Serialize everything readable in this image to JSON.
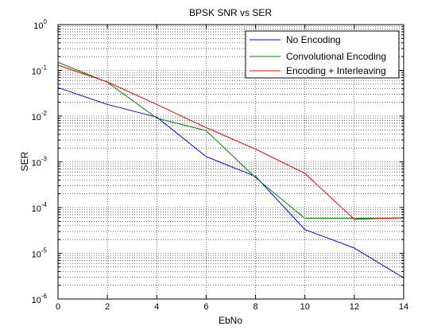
{
  "window": {
    "background": "#ffffff"
  },
  "chart_data": {
    "type": "line",
    "title": "BPSK SNR vs SER",
    "xlabel": "EbNo",
    "ylabel": "SER",
    "xlim": [
      0,
      14
    ],
    "ylim": [
      1e-06,
      1
    ],
    "yscale": "log",
    "grid": true,
    "grid_style": "dotted",
    "minor_grid": true,
    "legend_position": "top-right",
    "x_ticks": [
      {
        "value": 0,
        "label": "0"
      },
      {
        "value": 2,
        "label": "2"
      },
      {
        "value": 4,
        "label": "4"
      },
      {
        "value": 6,
        "label": "6"
      },
      {
        "value": 8,
        "label": "8"
      },
      {
        "value": 10,
        "label": "10"
      },
      {
        "value": 12,
        "label": "12"
      },
      {
        "value": 14,
        "label": "14"
      }
    ],
    "y_ticks": [
      {
        "value": 1e-06,
        "base": "10",
        "exp": "-6"
      },
      {
        "value": 1e-05,
        "base": "10",
        "exp": "-5"
      },
      {
        "value": 0.0001,
        "base": "10",
        "exp": "-4"
      },
      {
        "value": 0.001,
        "base": "10",
        "exp": "-3"
      },
      {
        "value": 0.01,
        "base": "10",
        "exp": "-2"
      },
      {
        "value": 0.1,
        "base": "10",
        "exp": "-1"
      },
      {
        "value": 1,
        "base": "10",
        "exp": "0"
      }
    ],
    "x": [
      0,
      2,
      4,
      6,
      8,
      10,
      12,
      14
    ],
    "series": [
      {
        "name": "No Encoding",
        "color": "#0000ff",
        "values": [
          0.042,
          0.018,
          0.0095,
          0.0013,
          0.00048,
          3.3e-05,
          1.3e-05,
          2.9e-06
        ]
      },
      {
        "name": "Convolutional Encoding",
        "color": "#008000",
        "values": [
          0.15,
          0.055,
          0.009,
          0.0048,
          0.00045,
          5.8e-05,
          5.8e-05,
          5.9e-05
        ]
      },
      {
        "name": "Encoding + Interleaving",
        "color": "#ff0000",
        "values": [
          0.13,
          0.056,
          0.018,
          0.0056,
          0.0019,
          0.00056,
          5.5e-05,
          6e-05
        ]
      }
    ]
  }
}
